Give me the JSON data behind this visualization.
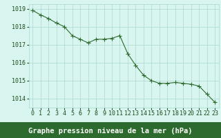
{
  "x": [
    0,
    1,
    2,
    3,
    4,
    5,
    6,
    7,
    8,
    9,
    10,
    11,
    12,
    13,
    14,
    15,
    16,
    17,
    18,
    19,
    20,
    21,
    22,
    23
  ],
  "y": [
    1018.9,
    1018.65,
    1018.45,
    1018.2,
    1018.0,
    1017.5,
    1017.3,
    1017.1,
    1017.3,
    1017.3,
    1017.35,
    1017.5,
    1016.5,
    1015.85,
    1015.3,
    1015.0,
    1014.85,
    1014.85,
    1014.9,
    1014.85,
    1014.8,
    1014.7,
    1014.25,
    1013.8
  ],
  "line_color": "#2d6a2d",
  "marker": "+",
  "marker_size": 4,
  "marker_color": "#2d6a2d",
  "bg_color": "#d8f5f0",
  "grid_color": "#aad8d0",
  "xlabel": "Graphe pression niveau de la mer (hPa)",
  "xlabel_fontsize": 7.5,
  "xlabel_color": "#ffffff",
  "xlabel_bg": "#2d6a2d",
  "tick_color": "#1a4a1a",
  "tick_fontsize": 6,
  "ylim": [
    1013.5,
    1019.25
  ],
  "yticks": [
    1014,
    1015,
    1016,
    1017,
    1018,
    1019
  ],
  "xlim": [
    -0.5,
    23.5
  ],
  "xticks": [
    0,
    1,
    2,
    3,
    4,
    5,
    6,
    7,
    8,
    9,
    10,
    11,
    12,
    13,
    14,
    15,
    16,
    17,
    18,
    19,
    20,
    21,
    22,
    23
  ]
}
